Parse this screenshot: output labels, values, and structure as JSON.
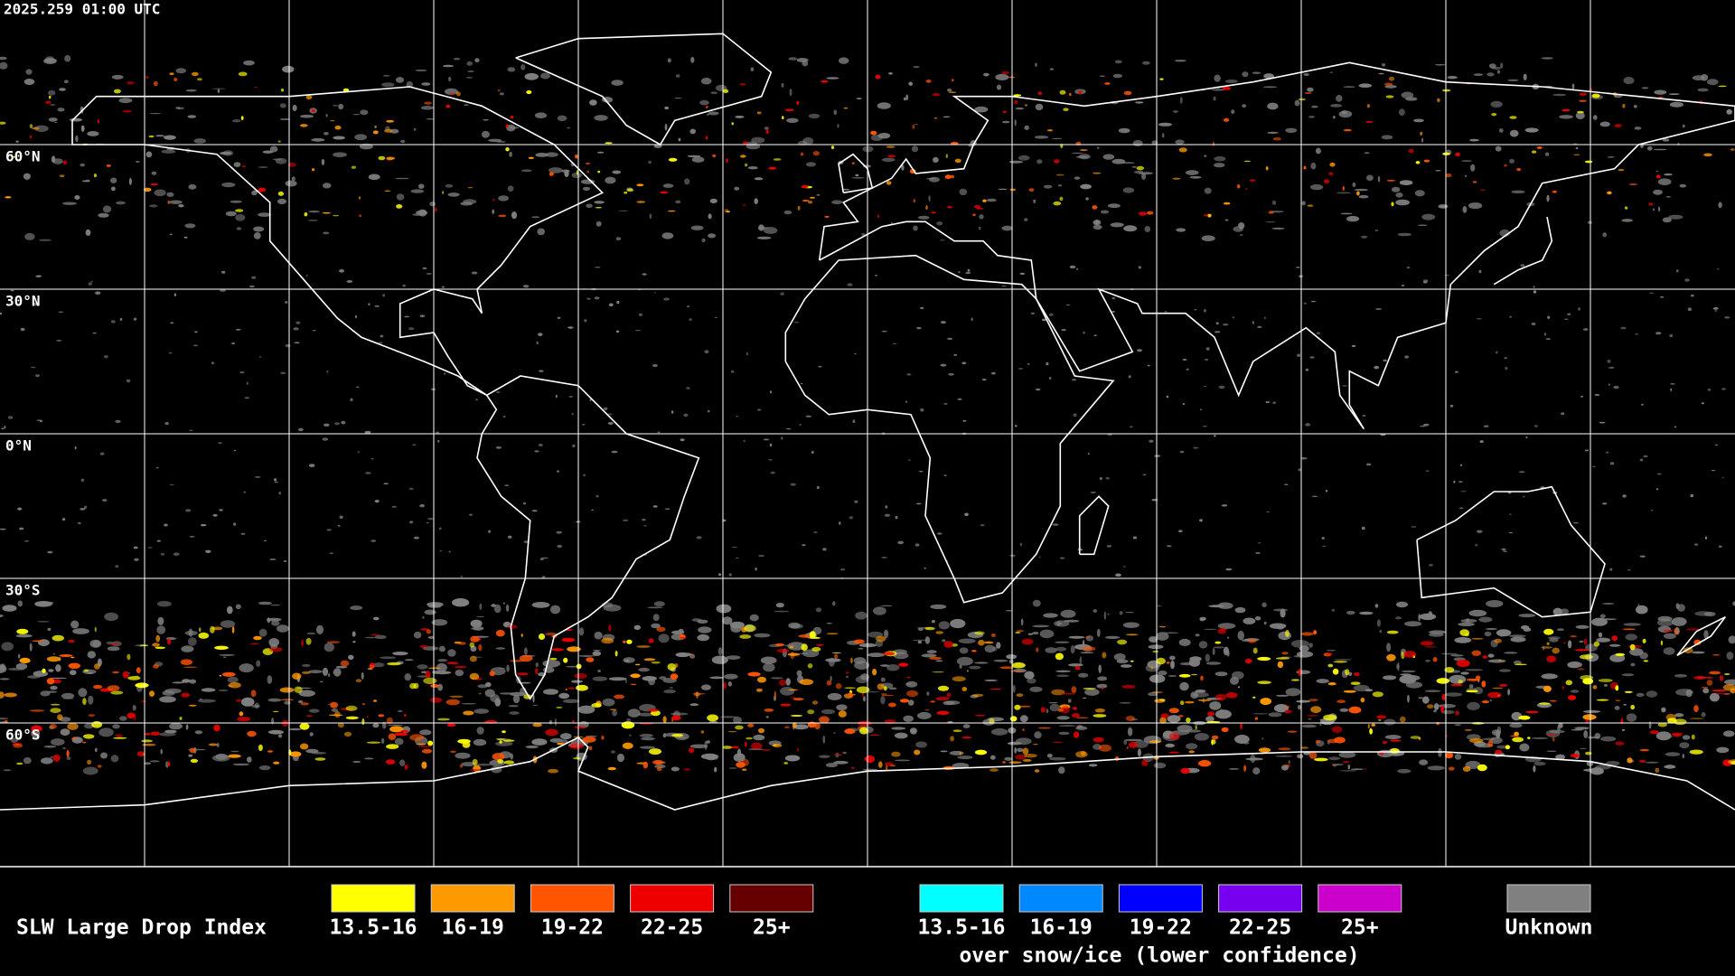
{
  "header": {
    "timestamp": "2025.259 01:00 UTC"
  },
  "map": {
    "latitude_labels": [
      "60°N",
      "30°N",
      "0°N",
      "30°S",
      "60°S"
    ]
  },
  "legend": {
    "title": "SLW Large Drop Index",
    "items": [
      {
        "label": "13.5-16",
        "color": "#ffff00"
      },
      {
        "label": "16-19",
        "color": "#ff9900"
      },
      {
        "label": "19-22",
        "color": "#ff5500"
      },
      {
        "label": "22-25",
        "color": "#ee0000"
      },
      {
        "label": "25+",
        "color": "#660000"
      }
    ],
    "snow_ice_items": [
      {
        "label": "13.5-16",
        "color": "#00ffff"
      },
      {
        "label": "16-19",
        "color": "#0088ff"
      },
      {
        "label": "19-22",
        "color": "#0000ff"
      },
      {
        "label": "22-25",
        "color": "#7700ee"
      },
      {
        "label": "25+",
        "color": "#cc00cc"
      }
    ],
    "snow_ice_caption": "over snow/ice (lower confidence)",
    "unknown": {
      "label": "Unknown",
      "color": "#808080"
    }
  }
}
